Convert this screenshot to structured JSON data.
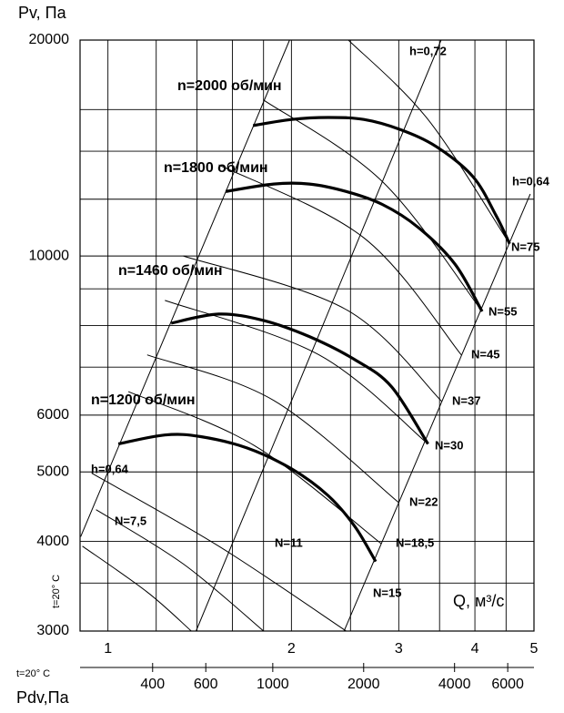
{
  "chart_data": {
    "type": "line",
    "y_label": "Pv, Па",
    "x_label": "Q, м³/с",
    "x2_label": "Pdv,Па",
    "y_note": "t=20° C",
    "x2_note": "t=20° C",
    "xlog": true,
    "ylog": true,
    "xlim": [
      0.9,
      5
    ],
    "xticks": [
      1,
      2,
      3,
      4,
      5
    ],
    "xgrid": [
      1.2,
      1.4,
      1.6,
      1.8,
      2.5,
      3.5,
      4.5
    ],
    "ylim": [
      3000,
      20000
    ],
    "yticks": [
      3000,
      4000,
      5000,
      6000,
      10000,
      20000
    ],
    "ygrid": [
      3500,
      7000,
      8000,
      9000,
      12000,
      14000,
      16000
    ],
    "x2lim": [
      230,
      7330
    ],
    "x2ticks": [
      400,
      600,
      1000,
      2000,
      4000,
      6000
    ],
    "color": "#000000",
    "series": [
      {
        "name": "n=2000 об/мин",
        "x": [
          1.73,
          2.0,
          2.3,
          2.63,
          3.02,
          3.46,
          3.97,
          4.33,
          4.56
        ],
        "values": [
          15200,
          15500,
          15600,
          15500,
          15000,
          14200,
          12900,
          11400,
          10400
        ]
      },
      {
        "name": "n=1800 об/мин",
        "x": [
          1.56,
          1.87,
          2.14,
          2.46,
          2.82,
          3.23,
          3.71,
          4.11
        ],
        "values": [
          12300,
          12600,
          12600,
          12300,
          11800,
          10960,
          9740,
          8370
        ]
      },
      {
        "name": "n=1460 об/мин",
        "x": [
          1.27,
          1.52,
          1.8,
          2.14,
          2.54,
          2.92,
          3.35
        ],
        "values": [
          8060,
          8300,
          8130,
          7720,
          7170,
          6570,
          5470
        ]
      },
      {
        "name": "n=1200 об/мин",
        "x": [
          1.04,
          1.24,
          1.42,
          1.69,
          2.0,
          2.3,
          2.54,
          2.75
        ],
        "values": [
          5470,
          5630,
          5600,
          5400,
          5050,
          4630,
          4200,
          3750
        ]
      }
    ],
    "power_lines": [
      {
        "name": "N=75",
        "x": [
          2.48,
          3.35,
          4.56
        ],
        "values": [
          20000,
          15500,
          10400
        ]
      },
      {
        "name": "N=55",
        "x": [
          1.8,
          2.82,
          4.11
        ],
        "values": [
          16500,
          12700,
          8370
        ]
      },
      {
        "name": "N=45",
        "x": [
          1.52,
          2.63,
          3.8
        ],
        "values": [
          13400,
          10600,
          7280
        ]
      },
      {
        "name": "N=37",
        "x": [
          1.33,
          2.46,
          3.53
        ],
        "values": [
          10000,
          8420,
          6270
        ]
      },
      {
        "name": "N=30",
        "x": [
          1.24,
          2.22,
          3.35
        ],
        "values": [
          8670,
          7280,
          5470
        ]
      },
      {
        "name": "N=22",
        "x": [
          1.16,
          1.87,
          3.0
        ],
        "values": [
          7280,
          6290,
          4530
        ]
      },
      {
        "name": "N=18,5",
        "x": [
          1.08,
          1.74,
          2.81
        ],
        "values": [
          6470,
          5440,
          3970
        ]
      },
      {
        "name": "N=15",
        "x": [
          0.94,
          1.52,
          2.46
        ],
        "values": [
          4980,
          3940,
          3000
        ]
      },
      {
        "name": "N=11",
        "x": [
          0.956,
          1.33,
          1.8
        ],
        "values": [
          4430,
          3720,
          3000
        ]
      },
      {
        "name": "N=7,5",
        "x": [
          0.908,
          1.16,
          1.37
        ],
        "values": [
          3940,
          3400,
          3000
        ]
      }
    ],
    "efficiency_lines": [
      {
        "name": "h=0,64",
        "x": [
          0.902,
          1.986
        ],
        "values": [
          4060,
          20000
        ]
      },
      {
        "name": "h=0,72",
        "x": [
          1.395,
          3.52
        ],
        "values": [
          3000,
          20000
        ]
      },
      {
        "name": "h=0,64",
        "x": [
          2.44,
          4.93
        ],
        "values": [
          3000,
          12200
        ]
      }
    ]
  }
}
